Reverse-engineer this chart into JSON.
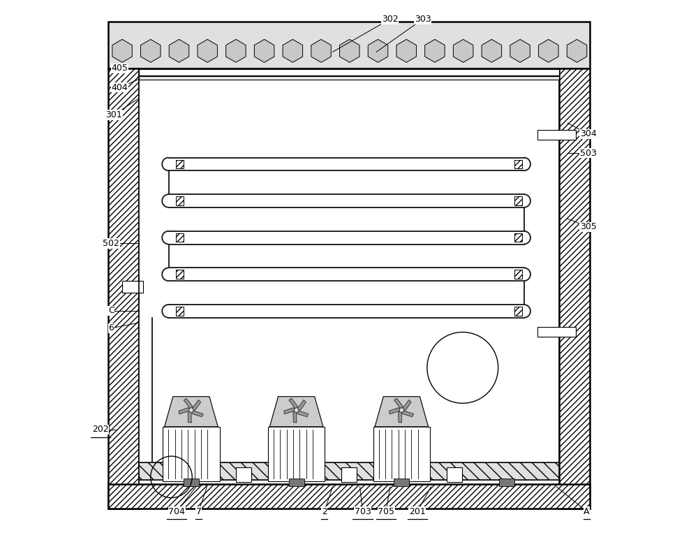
{
  "fig_width": 10.0,
  "fig_height": 7.83,
  "bg_color": "#ffffff",
  "line_color": "#000000",
  "label_positions": {
    "302": [
      0.575,
      0.965,
      0.47,
      0.905
    ],
    "303": [
      0.635,
      0.965,
      0.55,
      0.905
    ],
    "405": [
      0.08,
      0.875,
      0.115,
      0.875
    ],
    "404": [
      0.08,
      0.84,
      0.115,
      0.855
    ],
    "301": [
      0.07,
      0.79,
      0.115,
      0.82
    ],
    "304": [
      0.938,
      0.755,
      0.9,
      0.775
    ],
    "503": [
      0.938,
      0.72,
      0.9,
      0.72
    ],
    "305": [
      0.938,
      0.585,
      0.9,
      0.6
    ],
    "502": [
      0.065,
      0.555,
      0.115,
      0.555
    ],
    "C": [
      0.065,
      0.432,
      0.115,
      0.432
    ],
    "6": [
      0.065,
      0.4,
      0.115,
      0.41
    ],
    "202": [
      0.045,
      0.215,
      0.075,
      0.215
    ],
    "704": [
      0.185,
      0.065,
      0.22,
      0.11
    ],
    "7": [
      0.225,
      0.065,
      0.24,
      0.11
    ],
    "2": [
      0.455,
      0.065,
      0.47,
      0.11
    ],
    "703": [
      0.525,
      0.065,
      0.52,
      0.11
    ],
    "705": [
      0.568,
      0.065,
      0.575,
      0.11
    ],
    "201": [
      0.625,
      0.065,
      0.65,
      0.11
    ],
    "A": [
      0.935,
      0.065,
      0.88,
      0.11
    ]
  },
  "underline_labels": [
    "7",
    "2",
    "A",
    "704",
    "703",
    "705",
    "201",
    "202"
  ]
}
